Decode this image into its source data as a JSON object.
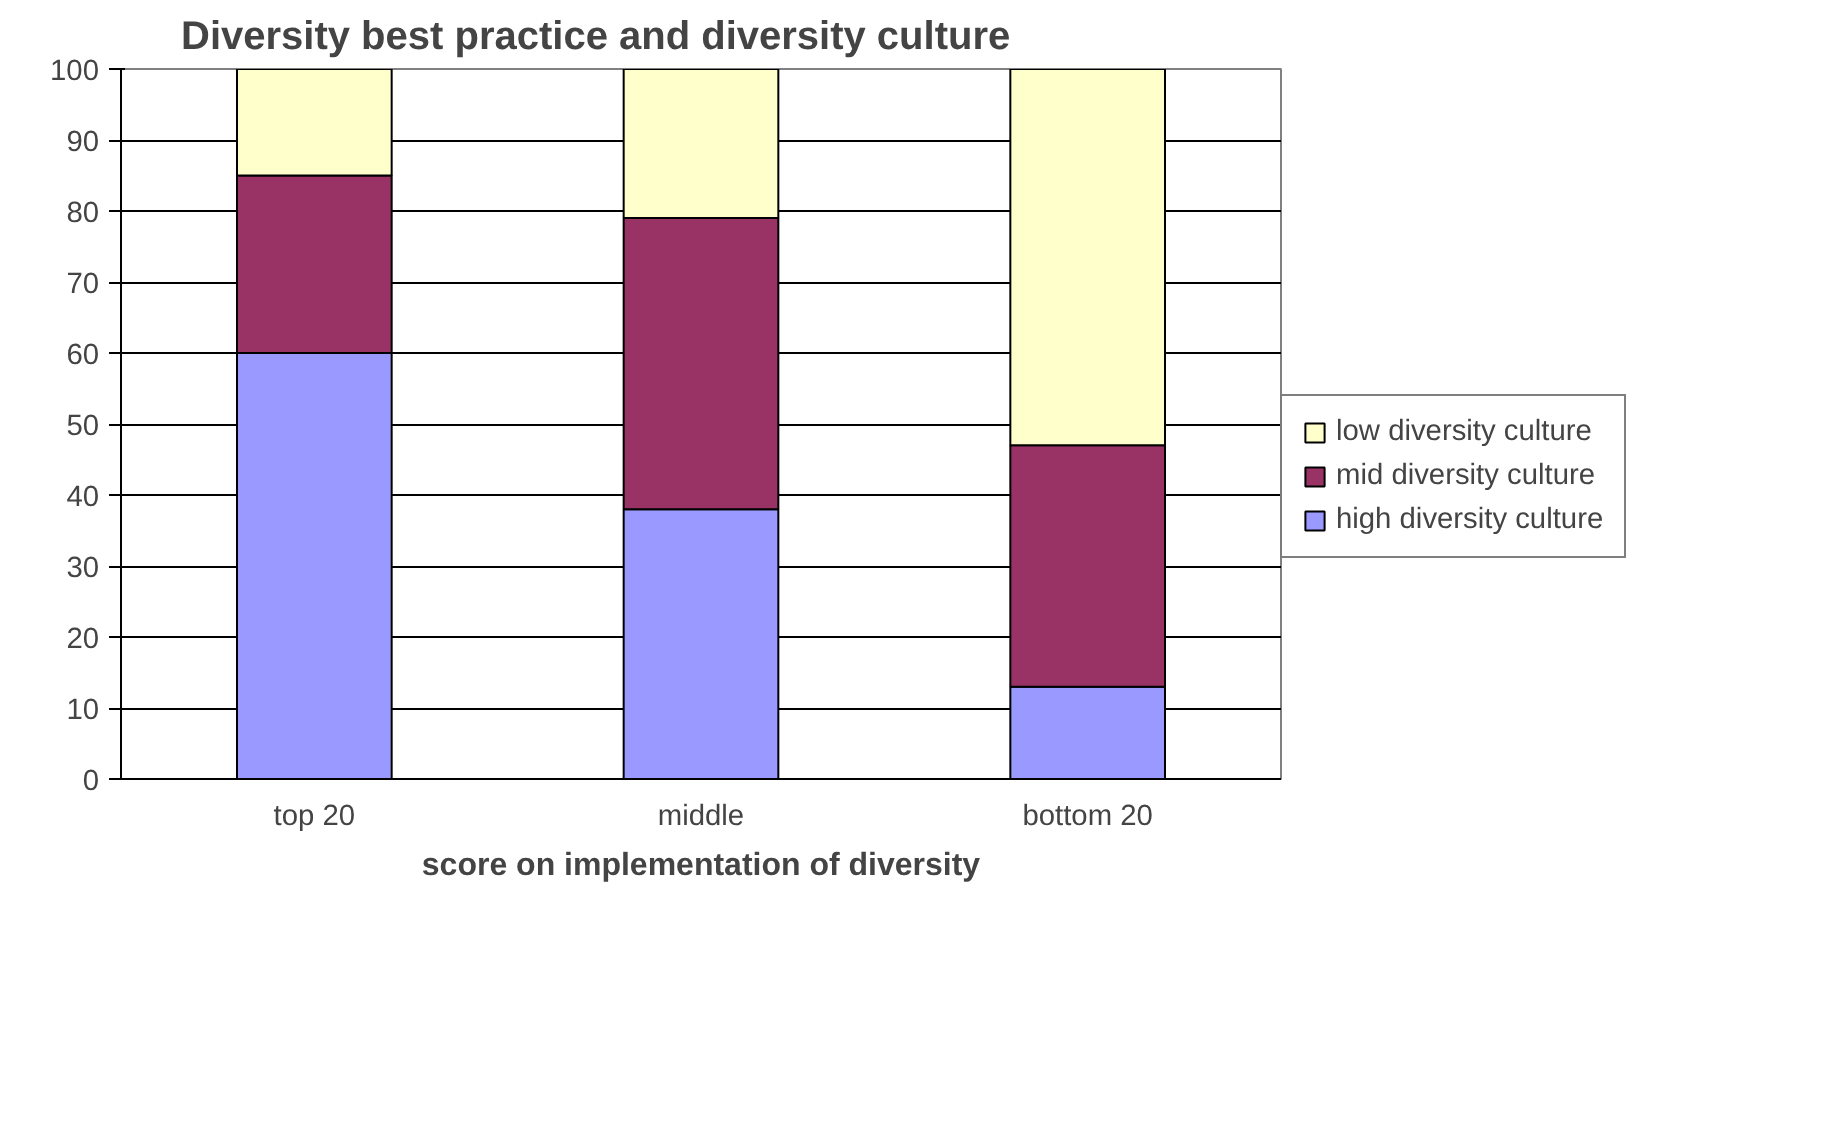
{
  "chart_data": {
    "type": "bar",
    "title": "Diversity best practice and diversity culture",
    "xlabel": "score on implementation of diversity",
    "categories": [
      "top 20",
      "middle",
      "bottom 20"
    ],
    "stacked": true,
    "series": [
      {
        "name": "high diversity culture",
        "color": "#9999ff",
        "values": [
          60,
          38,
          13
        ]
      },
      {
        "name": "mid diversity culture",
        "color": "#993366",
        "values": [
          25,
          41,
          34
        ]
      },
      {
        "name": "low diversity culture",
        "color": "#ffffcc",
        "values": [
          15,
          21,
          53
        ]
      }
    ],
    "ylim": [
      0,
      100
    ],
    "yticks": [
      0,
      10,
      20,
      30,
      40,
      50,
      60,
      70,
      80,
      90,
      100
    ],
    "grid": "y",
    "legend": "right"
  }
}
